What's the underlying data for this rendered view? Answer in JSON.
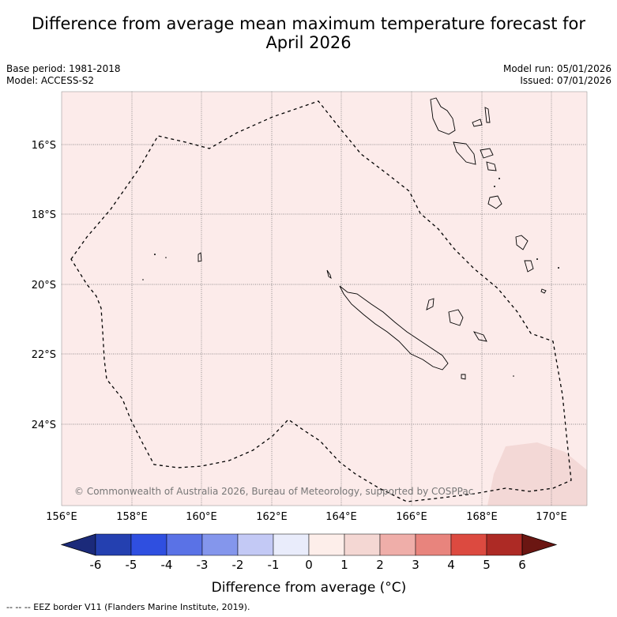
{
  "title_line1": "Difference from average mean maximum temperature forecast for",
  "title_line2": "April 2026",
  "base_period": "Base period: 1981-2018",
  "model": "Model: ACCESS-S2",
  "model_run": "Model run: 05/01/2026",
  "issued": "Issued: 07/01/2026",
  "copyright": "© Commonwealth of Australia 2026, Bureau of Meteorology, supported by COSPPac",
  "colorbar_label": "Difference from average (°C)",
  "footnote": "--  --  -- EEZ border V11 (Flanders Marine Institute, 2019).",
  "lat_labels": [
    "16°S",
    "18°S",
    "20°S",
    "22°S",
    "24°S"
  ],
  "lon_labels": [
    "156°E",
    "158°E",
    "160°E",
    "162°E",
    "164°E",
    "166°E",
    "168°E",
    "170°E"
  ],
  "colorbar": {
    "ticks": [
      "-6",
      "-5",
      "-4",
      "-3",
      "-2",
      "-1",
      "0",
      "1",
      "2",
      "3",
      "4",
      "5",
      "6"
    ],
    "colors": [
      "#1b2a7a",
      "#2440b0",
      "#2f4fe0",
      "#5a72e6",
      "#8496ec",
      "#c3c9f5",
      "#e9ecfb",
      "#fdeeea",
      "#f4d7d3",
      "#efaea9",
      "#e8847d",
      "#dc4a40",
      "#ad2a25",
      "#6b1612"
    ]
  },
  "map_colors": {
    "background": "#fcebea",
    "warm_patch": "#f3d8d6",
    "land_stroke": "#000000"
  }
}
